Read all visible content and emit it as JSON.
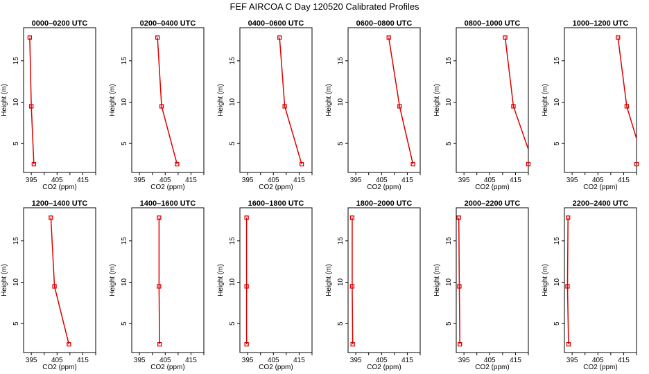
{
  "title": "FEF AIRCOA C  Day 120520  Calibrated Profiles",
  "colors": {
    "series": "#dd0000",
    "axis": "#000000",
    "background": "#ffffff"
  },
  "chart_data": [
    {
      "type": "line",
      "title": "0000–0200 UTC",
      "xlabel": "CO2 (ppm)",
      "ylabel": "Height (m)",
      "xlim": [
        392,
        420
      ],
      "ylim": [
        1.5,
        19
      ],
      "xticks": [
        "395",
        "405",
        "415"
      ],
      "yticks": [
        "5",
        "10",
        "15"
      ],
      "x": [
        394.4,
        395.0,
        396.0
      ],
      "y": [
        17.8,
        9.5,
        2.5
      ]
    },
    {
      "type": "line",
      "title": "0200–0400 UTC",
      "xlabel": "CO2 (ppm)",
      "ylabel": "Height (m)",
      "xlim": [
        392,
        420
      ],
      "ylim": [
        1.5,
        19
      ],
      "xticks": [
        "395",
        "405",
        "415"
      ],
      "yticks": [
        "5",
        "10",
        "15"
      ],
      "x": [
        402.0,
        403.6,
        409.6
      ],
      "y": [
        17.8,
        9.5,
        2.5
      ]
    },
    {
      "type": "line",
      "title": "0400–0600 UTC",
      "xlabel": "CO2 (ppm)",
      "ylabel": "Height (m)",
      "xlim": [
        392,
        420
      ],
      "ylim": [
        1.5,
        19
      ],
      "xticks": [
        "395",
        "405",
        "415"
      ],
      "yticks": [
        "5",
        "10",
        "15"
      ],
      "x": [
        407.4,
        409.4,
        416.0
      ],
      "y": [
        17.8,
        9.5,
        2.5
      ]
    },
    {
      "type": "line",
      "title": "0600–0800 UTC",
      "xlabel": "CO2 (ppm)",
      "ylabel": "Height (m)",
      "xlim": [
        392,
        420
      ],
      "ylim": [
        1.5,
        19
      ],
      "xticks": [
        "395",
        "405",
        "415"
      ],
      "yticks": [
        "5",
        "10",
        "15"
      ],
      "x": [
        407.8,
        412.0,
        417.2
      ],
      "y": [
        17.8,
        9.5,
        2.5
      ]
    },
    {
      "type": "line",
      "title": "0800–1000 UTC",
      "xlabel": "CO2 (ppm)",
      "ylabel": "Height (m)",
      "xlim": [
        392,
        420
      ],
      "ylim": [
        1.5,
        19
      ],
      "xticks": [
        "395",
        "405",
        "415"
      ],
      "yticks": [
        "5",
        "10",
        "15"
      ],
      "x": [
        411.0,
        414.2,
        422.0
      ],
      "y": [
        17.8,
        9.5,
        2.5
      ]
    },
    {
      "type": "line",
      "title": "1000–1200 UTC",
      "xlabel": "CO2 (ppm)",
      "ylabel": "Height (m)",
      "xlim": [
        392,
        420
      ],
      "ylim": [
        1.5,
        19
      ],
      "xticks": [
        "395",
        "405",
        "415"
      ],
      "yticks": [
        "5",
        "10",
        "15"
      ],
      "x": [
        412.8,
        416.2,
        423.0
      ],
      "y": [
        17.8,
        9.5,
        2.5
      ]
    },
    {
      "type": "line",
      "title": "1200–1400 UTC",
      "xlabel": "CO2 (ppm)",
      "ylabel": "Height (m)",
      "xlim": [
        392,
        420
      ],
      "ylim": [
        1.5,
        19
      ],
      "xticks": [
        "395",
        "405",
        "415"
      ],
      "yticks": [
        "5",
        "10",
        "15"
      ],
      "x": [
        402.6,
        404.0,
        409.6
      ],
      "y": [
        17.8,
        9.5,
        2.5
      ]
    },
    {
      "type": "line",
      "title": "1400–1600 UTC",
      "xlabel": "CO2 (ppm)",
      "ylabel": "Height (m)",
      "xlim": [
        392,
        420
      ],
      "ylim": [
        1.5,
        19
      ],
      "xticks": [
        "395",
        "405",
        "415"
      ],
      "yticks": [
        "5",
        "10",
        "15"
      ],
      "x": [
        402.6,
        402.6,
        402.8
      ],
      "y": [
        17.8,
        9.5,
        2.5
      ]
    },
    {
      "type": "line",
      "title": "1600–1800 UTC",
      "xlabel": "CO2 (ppm)",
      "ylabel": "Height (m)",
      "xlim": [
        392,
        420
      ],
      "ylim": [
        1.5,
        19
      ],
      "xticks": [
        "395",
        "405",
        "415"
      ],
      "yticks": [
        "5",
        "10",
        "15"
      ],
      "x": [
        394.6,
        394.6,
        394.6
      ],
      "y": [
        17.8,
        9.5,
        2.5
      ]
    },
    {
      "type": "line",
      "title": "1800–2000 UTC",
      "xlabel": "CO2 (ppm)",
      "ylabel": "Height (m)",
      "xlim": [
        392,
        420
      ],
      "ylim": [
        1.5,
        19
      ],
      "xticks": [
        "395",
        "405",
        "415"
      ],
      "yticks": [
        "5",
        "10",
        "15"
      ],
      "x": [
        393.6,
        393.6,
        393.8
      ],
      "y": [
        17.8,
        9.5,
        2.5
      ]
    },
    {
      "type": "line",
      "title": "2000–2200 UTC",
      "xlabel": "CO2 (ppm)",
      "ylabel": "Height (m)",
      "xlim": [
        392,
        420
      ],
      "ylim": [
        1.5,
        19
      ],
      "xticks": [
        "395",
        "405",
        "415"
      ],
      "yticks": [
        "5",
        "10",
        "15"
      ],
      "x": [
        393.0,
        393.2,
        393.4
      ],
      "y": [
        17.8,
        9.5,
        2.5
      ]
    },
    {
      "type": "line",
      "title": "2200–2400 UTC",
      "xlabel": "CO2 (ppm)",
      "ylabel": "Height (m)",
      "xlim": [
        392,
        420
      ],
      "ylim": [
        1.5,
        19
      ],
      "xticks": [
        "395",
        "405",
        "415"
      ],
      "yticks": [
        "5",
        "10",
        "15"
      ],
      "x": [
        393.4,
        393.2,
        393.6
      ],
      "y": [
        17.8,
        9.5,
        2.5
      ]
    }
  ]
}
